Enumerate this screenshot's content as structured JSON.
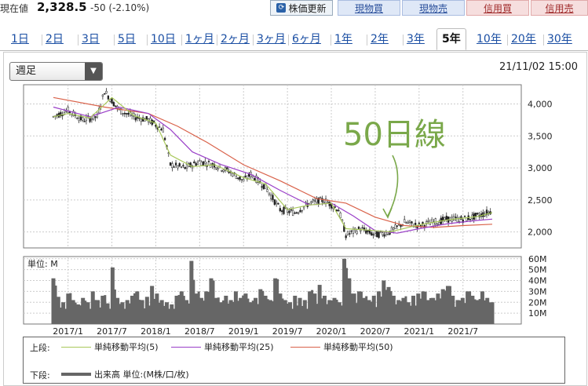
{
  "header": {
    "price_label": "現在値",
    "price_value": "2,328.5",
    "price_change": "-50 (-2.10%)",
    "update_button": "株価更新",
    "update_icon": "refresh-icon",
    "trade_buttons": [
      "現物買",
      "現物売",
      "信用買",
      "信用売"
    ]
  },
  "tabs": [
    "1日",
    "2日",
    "3日",
    "5日",
    "10日",
    "1ヶ月",
    "2ヶ月",
    "3ヶ月",
    "6ヶ月",
    "1年",
    "2年",
    "3年",
    "5年",
    "10年",
    "20年",
    "30年"
  ],
  "active_tab": "5年",
  "controls": {
    "period_select": "週足",
    "timestamp": "21/11/02 15:00"
  },
  "annotation": "50日線",
  "volume_unit_label": "単位: M",
  "legend": {
    "upper_label": "上段:",
    "lower_label": "下段:",
    "ma_items": [
      {
        "label": "単純移動平均(5)",
        "color": "#a8c85a"
      },
      {
        "label": "単純移動平均(25)",
        "color": "#9a3fc8"
      },
      {
        "label": "単純移動平均(50)",
        "color": "#d9624a"
      }
    ],
    "volume_item": "出来高 単位:(M株/口/枚)",
    "volume_color": "#666666"
  },
  "chart_data": {
    "type": "candlestick",
    "x_ticks": [
      "2017/1",
      "2017/7",
      "2018/1",
      "2018/7",
      "2019/1",
      "2019/7",
      "2020/1",
      "2020/7",
      "2021/1",
      "2021/7"
    ],
    "price_ticks": [
      "4,000",
      "3,500",
      "3,000",
      "2,500",
      "2,000"
    ],
    "price_range": [
      1750,
      4300
    ],
    "volume_ticks": [
      "60M",
      "50M",
      "40M",
      "30M",
      "20M",
      "10M"
    ],
    "volume_range": [
      0,
      62
    ],
    "price_path": [
      [
        "2016/11",
        3800
      ],
      [
        "2017/1",
        3900
      ],
      [
        "2017/3",
        3750
      ],
      [
        "2017/5",
        3800
      ],
      [
        "2017/6",
        4200
      ],
      [
        "2017/8",
        3900
      ],
      [
        "2017/10",
        3800
      ],
      [
        "2017/12",
        3750
      ],
      [
        "2018/2",
        3600
      ],
      [
        "2018/3",
        3050
      ],
      [
        "2018/5",
        3000
      ],
      [
        "2018/7",
        3100
      ],
      [
        "2018/9",
        3050
      ],
      [
        "2018/11",
        2950
      ],
      [
        "2019/1",
        2800
      ],
      [
        "2019/2",
        2900
      ],
      [
        "2019/4",
        2700
      ],
      [
        "2019/6",
        2350
      ],
      [
        "2019/8",
        2300
      ],
      [
        "2019/10",
        2450
      ],
      [
        "2019/12",
        2500
      ],
      [
        "2020/2",
        2350
      ],
      [
        "2020/3",
        1950
      ],
      [
        "2020/5",
        2050
      ],
      [
        "2020/7",
        1950
      ],
      [
        "2020/9",
        2000
      ],
      [
        "2020/11",
        2150
      ],
      [
        "2021/1",
        2100
      ],
      [
        "2021/3",
        2150
      ],
      [
        "2021/5",
        2200
      ],
      [
        "2021/7",
        2200
      ],
      [
        "2021/9",
        2250
      ],
      [
        "2021/11",
        2328.5
      ]
    ],
    "ma5": [
      [
        "2016/11",
        3800
      ],
      [
        "2017/1",
        3850
      ],
      [
        "2017/4",
        3780
      ],
      [
        "2017/7",
        4100
      ],
      [
        "2017/10",
        3820
      ],
      [
        "2018/1",
        3700
      ],
      [
        "2018/3",
        3200
      ],
      [
        "2018/6",
        3020
      ],
      [
        "2018/9",
        3050
      ],
      [
        "2019/1",
        2850
      ],
      [
        "2019/4",
        2750
      ],
      [
        "2019/7",
        2350
      ],
      [
        "2019/10",
        2420
      ],
      [
        "2020/1",
        2450
      ],
      [
        "2020/3",
        2050
      ],
      [
        "2020/6",
        2030
      ],
      [
        "2020/9",
        2000
      ],
      [
        "2021/1",
        2110
      ],
      [
        "2021/5",
        2190
      ],
      [
        "2021/9",
        2240
      ],
      [
        "2021/11",
        2300
      ]
    ],
    "ma25": [
      [
        "2016/11",
        3950
      ],
      [
        "2017/4",
        3800
      ],
      [
        "2017/8",
        3950
      ],
      [
        "2017/12",
        3850
      ],
      [
        "2018/3",
        3600
      ],
      [
        "2018/6",
        3250
      ],
      [
        "2018/10",
        3050
      ],
      [
        "2019/2",
        2900
      ],
      [
        "2019/6",
        2650
      ],
      [
        "2019/10",
        2420
      ],
      [
        "2020/1",
        2450
      ],
      [
        "2020/4",
        2250
      ],
      [
        "2020/7",
        2020
      ],
      [
        "2020/10",
        1980
      ],
      [
        "2021/1",
        2050
      ],
      [
        "2021/5",
        2130
      ],
      [
        "2021/9",
        2180
      ],
      [
        "2021/11",
        2200
      ]
    ],
    "ma50": [
      [
        "2016/11",
        4100
      ],
      [
        "2017/6",
        3950
      ],
      [
        "2017/12",
        3850
      ],
      [
        "2018/4",
        3650
      ],
      [
        "2018/8",
        3400
      ],
      [
        "2019/1",
        3050
      ],
      [
        "2019/6",
        2800
      ],
      [
        "2019/11",
        2520
      ],
      [
        "2020/3",
        2450
      ],
      [
        "2020/7",
        2230
      ],
      [
        "2020/11",
        2100
      ],
      [
        "2021/3",
        2070
      ],
      [
        "2021/7",
        2100
      ],
      [
        "2021/11",
        2120
      ]
    ],
    "volume": [
      42,
      25,
      20,
      28,
      22,
      18,
      24,
      20,
      30,
      22,
      26,
      19,
      52,
      24,
      20,
      22,
      26,
      30,
      22,
      25,
      35,
      28,
      22,
      20,
      18,
      26,
      30,
      22,
      58,
      28,
      24,
      30,
      42,
      24,
      20,
      26,
      22,
      30,
      24,
      28,
      20,
      24,
      32,
      26,
      22,
      42,
      28,
      22,
      20,
      26,
      24,
      22,
      30,
      28,
      36,
      26,
      22,
      24,
      20,
      60,
      42,
      28,
      30,
      24,
      22,
      26,
      30,
      40,
      34,
      26,
      22,
      24,
      20,
      26,
      28,
      30,
      22,
      24,
      28,
      32,
      35,
      26,
      22,
      24,
      30,
      26,
      22,
      30,
      24,
      20
    ]
  }
}
